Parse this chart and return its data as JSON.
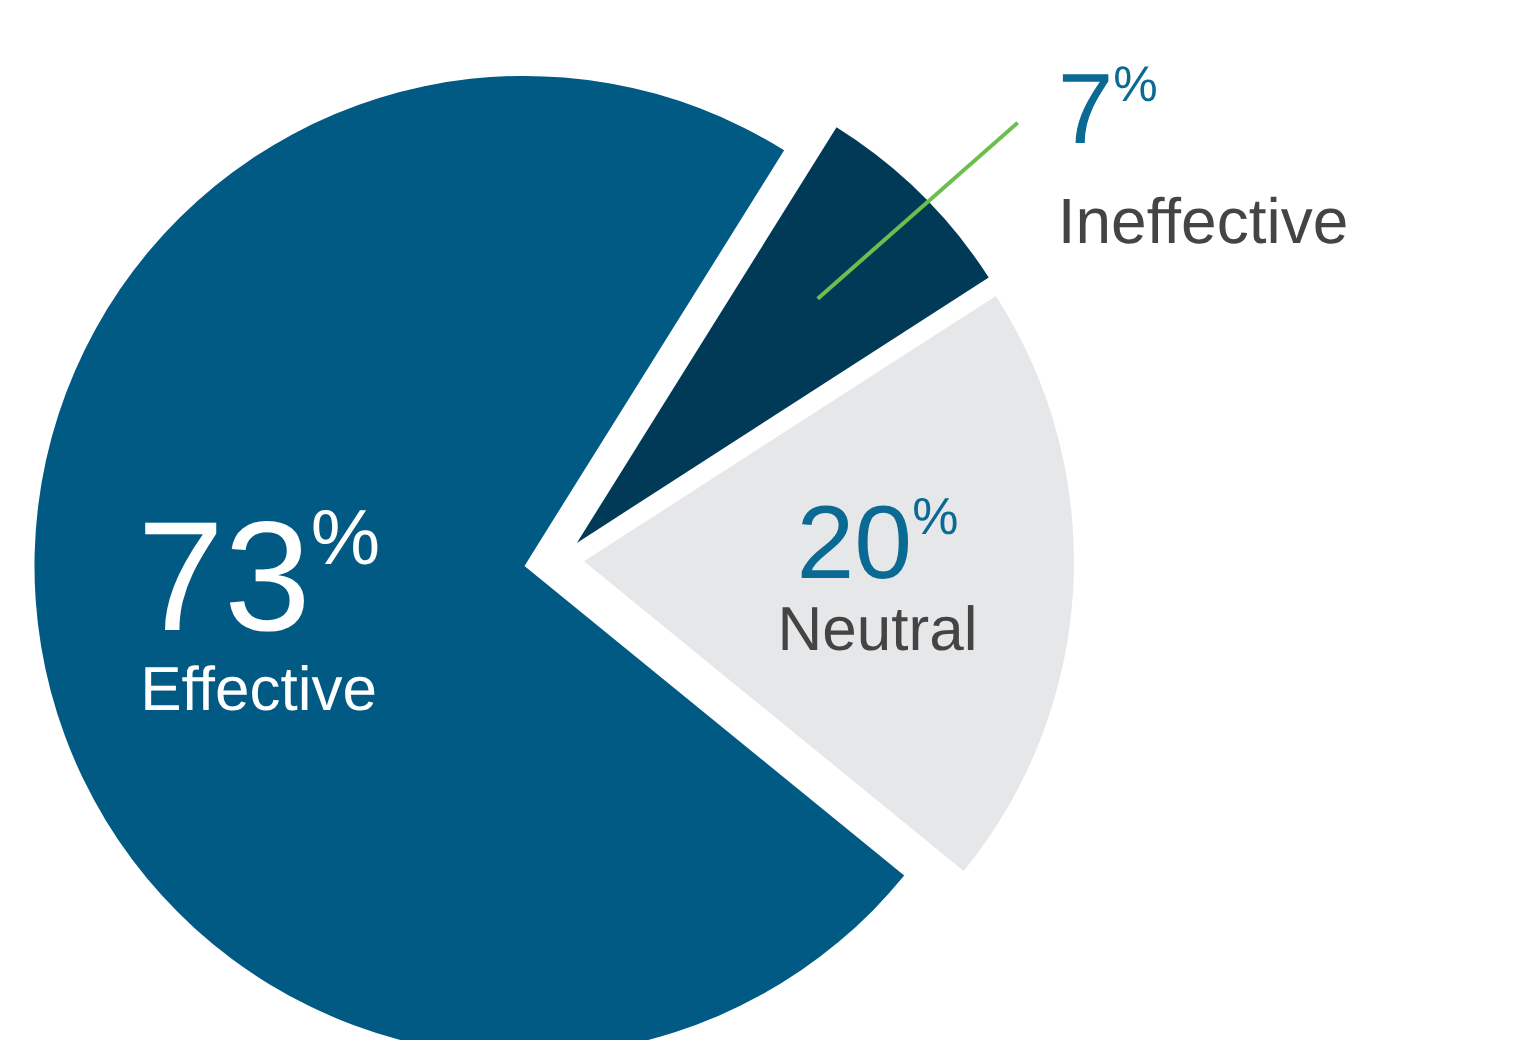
{
  "chart_data": {
    "type": "pie",
    "categories": [
      "Ineffective",
      "Neutral",
      "Effective"
    ],
    "values": [
      7,
      20,
      73
    ],
    "colors": [
      "#003a57",
      "#e6e7e9",
      "#005a83"
    ],
    "value_labels": [
      "7$^{%}$",
      "20$^{%}$",
      "73$^{%}$"
    ]
  }
}
